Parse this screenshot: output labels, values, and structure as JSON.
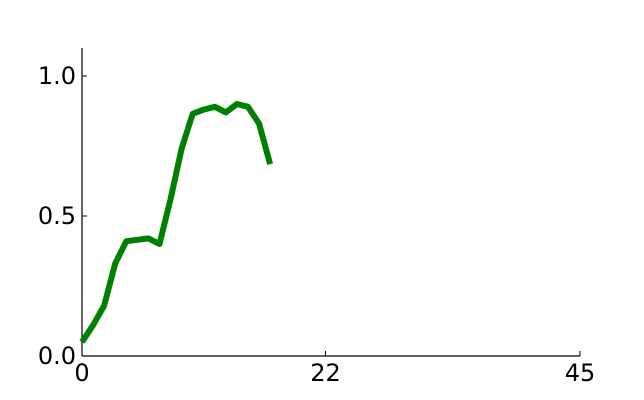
{
  "chart_data": {
    "type": "line",
    "title": "",
    "xlabel": "",
    "ylabel": "",
    "xlim": [
      0,
      45
    ],
    "ylim": [
      0,
      1.1
    ],
    "x_ticks": [
      0,
      22,
      45
    ],
    "x_tick_labels": [
      "0",
      "22",
      "45"
    ],
    "y_ticks": [
      0,
      0.5,
      1.0
    ],
    "y_tick_labels": [
      "0.0",
      "0.5",
      "1.0"
    ],
    "grid": false,
    "series": [
      {
        "color": "#008000",
        "x": [
          0,
          1,
          2,
          3,
          4,
          5,
          6,
          7,
          8,
          9,
          10,
          11,
          12,
          13,
          14,
          15,
          16,
          17
        ],
        "y": [
          0.05,
          0.11,
          0.18,
          0.33,
          0.41,
          0.415,
          0.42,
          0.4,
          0.56,
          0.74,
          0.865,
          0.88,
          0.89,
          0.87,
          0.9,
          0.89,
          0.83,
          0.685
        ]
      }
    ]
  }
}
